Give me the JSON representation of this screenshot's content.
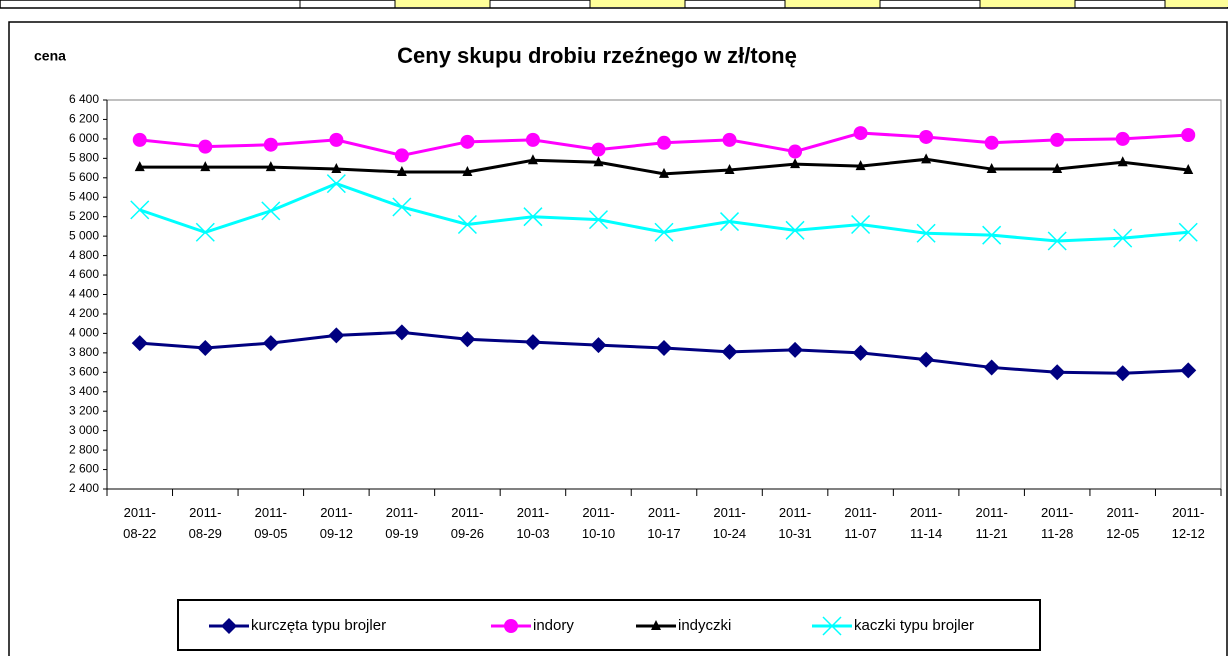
{
  "chart_data": {
    "type": "line",
    "title": "Ceny skupu drobiu rzeźnego w zł/tonę",
    "y_label": "cena",
    "categories": [
      "2011-08-22",
      "2011-08-29",
      "2011-09-05",
      "2011-09-12",
      "2011-09-19",
      "2011-09-26",
      "2011-10-03",
      "2011-10-10",
      "2011-10-17",
      "2011-10-24",
      "2011-10-31",
      "2011-11-07",
      "2011-11-14",
      "2011-11-21",
      "2011-11-28",
      "2011-12-05",
      "2011-12-12"
    ],
    "series": [
      {
        "name": "kurczęta typu brojler",
        "color": "#000080",
        "marker": "diamond",
        "values": [
          3900,
          3850,
          3900,
          3980,
          4010,
          3940,
          3910,
          3880,
          3850,
          3810,
          3830,
          3800,
          3730,
          3650,
          3600,
          3590,
          3620
        ]
      },
      {
        "name": "indory",
        "color": "#ff00ff",
        "marker": "circle",
        "values": [
          5990,
          5920,
          5940,
          5990,
          5830,
          5970,
          5990,
          5890,
          5960,
          5990,
          5870,
          6060,
          6020,
          5960,
          5990,
          6000,
          6040
        ]
      },
      {
        "name": "indyczki",
        "color": "#000000",
        "marker": "triangle",
        "values": [
          5710,
          5710,
          5710,
          5690,
          5660,
          5660,
          5780,
          5760,
          5640,
          5680,
          5740,
          5720,
          5790,
          5690,
          5690,
          5760,
          5680
        ]
      },
      {
        "name": "kaczki typu brojler",
        "color": "#00ffff",
        "marker": "x",
        "values": [
          5270,
          5040,
          5260,
          5540,
          5300,
          5120,
          5200,
          5170,
          5040,
          5150,
          5060,
          5120,
          5030,
          5010,
          4950,
          4980,
          5040
        ]
      }
    ],
    "ylim": [
      2400,
      6400
    ],
    "yticks": [
      {
        "value": 2400,
        "label": "2 400"
      },
      {
        "value": 2600,
        "label": "2 600"
      },
      {
        "value": 2800,
        "label": "2 800"
      },
      {
        "value": 3000,
        "label": "3 000"
      },
      {
        "value": 3200,
        "label": "3 200"
      },
      {
        "value": 3400,
        "label": "3 400"
      },
      {
        "value": 3600,
        "label": "3 600"
      },
      {
        "value": 3800,
        "label": "3 800"
      },
      {
        "value": 4000,
        "label": "4 000"
      },
      {
        "value": 4200,
        "label": "4 200"
      },
      {
        "value": 4400,
        "label": "4 400"
      },
      {
        "value": 4600,
        "label": "4 600"
      },
      {
        "value": 4800,
        "label": "4 800"
      },
      {
        "value": 5000,
        "label": "5 000"
      },
      {
        "value": 5200,
        "label": "5 200"
      },
      {
        "value": 5400,
        "label": "5 400"
      },
      {
        "value": 5600,
        "label": "5 600"
      },
      {
        "value": 5800,
        "label": "5 800"
      },
      {
        "value": 6000,
        "label": "6 000"
      },
      {
        "value": 6200,
        "label": "6 200"
      },
      {
        "value": 6400,
        "label": "6 400"
      }
    ],
    "grid": false,
    "legend": "bottom"
  }
}
